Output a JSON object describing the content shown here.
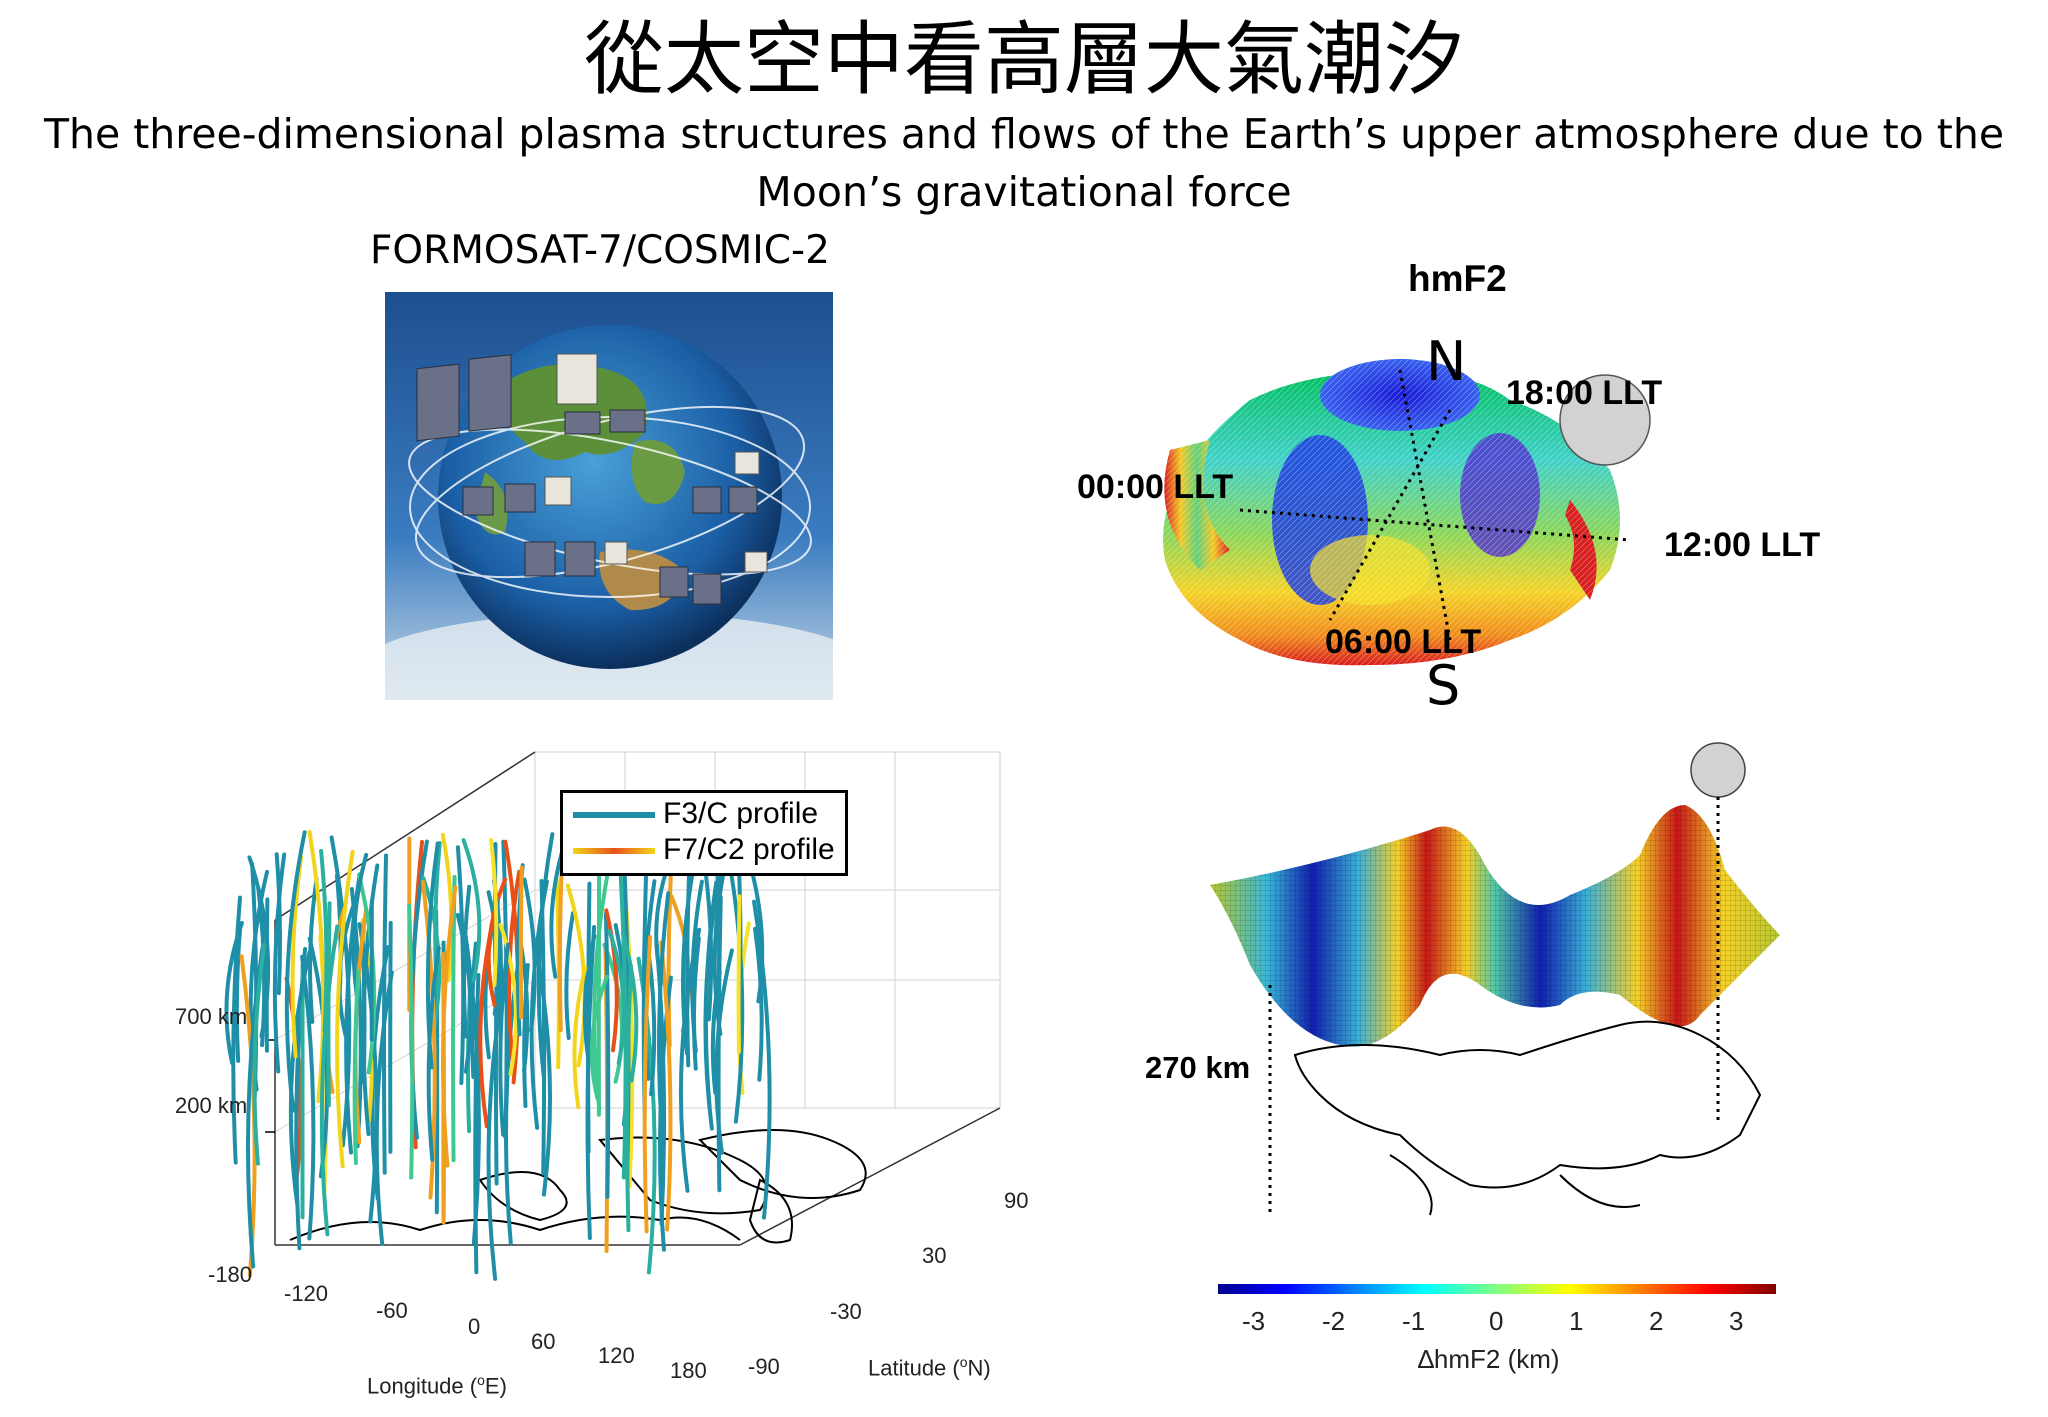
{
  "title": "從太空中看高層大氣潮汐",
  "subtitle": "The three-dimensional plasma structures and flows of the Earth’s upper atmosphere due to the Moon’s gravitational force",
  "satellite_panel": {
    "label": "FORMOSAT-7/COSMIC-2"
  },
  "hmf2_panel": {
    "title": "hmF2",
    "north": "N",
    "south": "S",
    "llt_18": "18:00 LLT",
    "llt_00": "00:00 LLT",
    "llt_12": "12:00 LLT",
    "llt_06": "06:00 LLT"
  },
  "profile_panel": {
    "legend": [
      {
        "label": "F3/C profile",
        "color": "#1f8fa8"
      },
      {
        "label": "F7/C2 profile",
        "color": "#f2d41a"
      }
    ],
    "z_ticks": [
      "700 km",
      "200 km"
    ],
    "lon_ticks": [
      "-180",
      "-120",
      "-60",
      "0",
      "60",
      "120",
      "180"
    ],
    "lat_ticks": [
      "90",
      "30",
      "-30",
      "-90"
    ],
    "lon_label": "Longitude (",
    "lon_sup": "o",
    "lon_unit": "E)",
    "lat_label": "Latitude (",
    "lat_sup": "o",
    "lat_unit": "N)"
  },
  "surface_panel": {
    "altitude_label": "270 km",
    "colorbar_ticks": [
      "-3",
      "-2",
      "-1",
      "0",
      "1",
      "2",
      "3"
    ],
    "colorbar_label": "∆hmF2 (km)"
  }
}
